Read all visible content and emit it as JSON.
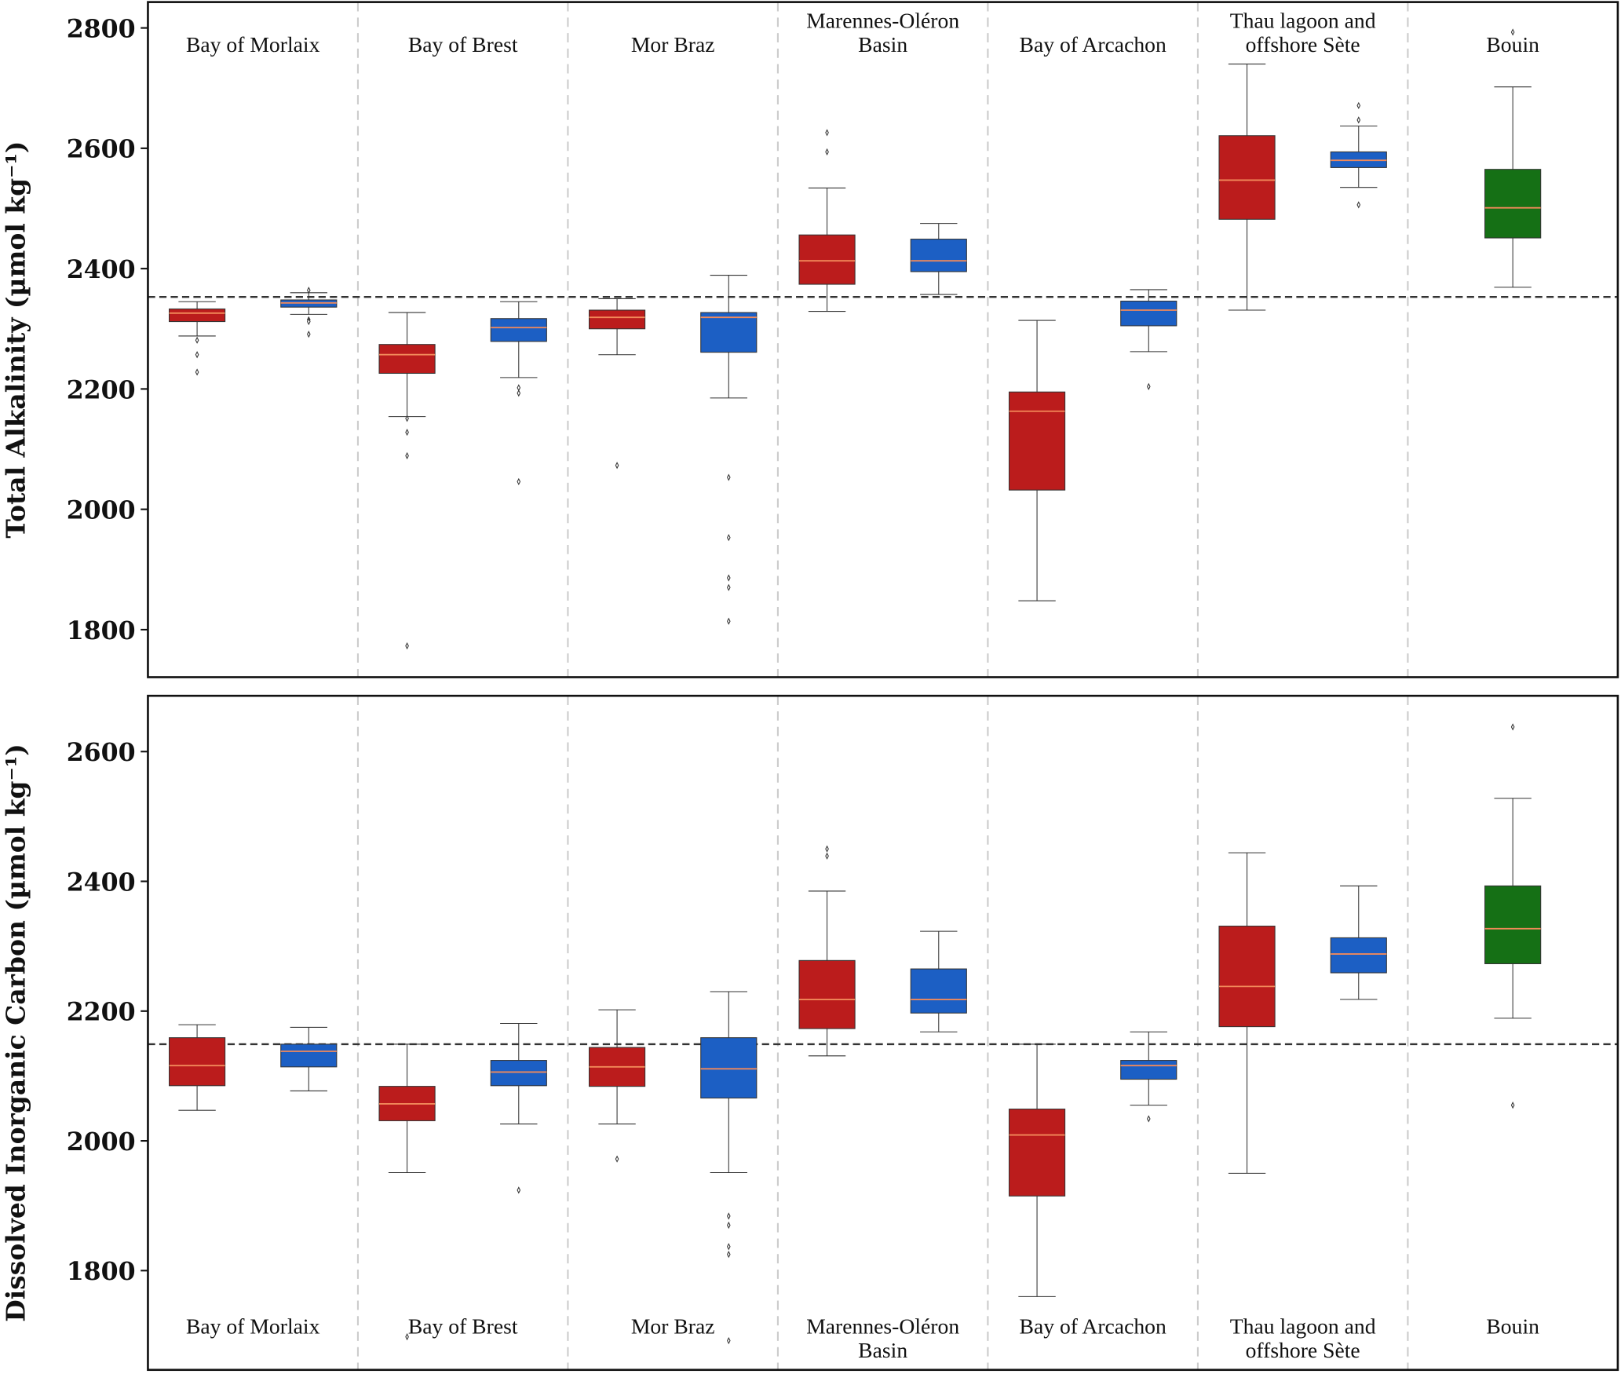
{
  "chart_data": [
    {
      "type": "box",
      "ylabel": "Total Alkalinity (µmol kg⁻¹)",
      "ylim": [
        1721,
        2843
      ],
      "yticks": [
        "1800",
        "2000",
        "2200",
        "2400",
        "2600",
        "2800"
      ],
      "reference_line": 2353,
      "category_label_position": "top",
      "grid": false,
      "groups": [
        {
          "name": [
            "Bay of Morlaix"
          ],
          "boxes": [
            {
              "color": "#BB1C1C",
              "whislo": 2288,
              "q1": 2312,
              "med": 2326,
              "q3": 2333,
              "whishi": 2345,
              "fliers": [
                2281,
                2257,
                2228
              ]
            },
            {
              "color": "#1C5FC4",
              "whislo": 2324,
              "q1": 2336,
              "med": 2343,
              "q3": 2348,
              "whishi": 2360,
              "fliers": [
                2364,
                2315,
                2312,
                2291
              ]
            }
          ]
        },
        {
          "name": [
            "Bay of Brest"
          ],
          "boxes": [
            {
              "color": "#BB1C1C",
              "whislo": 2154,
              "q1": 2226,
              "med": 2257,
              "q3": 2274,
              "whishi": 2327,
              "fliers": [
                2151,
                2128,
                2089,
                1773
              ]
            },
            {
              "color": "#1C5FC4",
              "whislo": 2219,
              "q1": 2279,
              "med": 2302,
              "q3": 2317,
              "whishi": 2345,
              "fliers": [
                2202,
                2193,
                2046
              ]
            }
          ]
        },
        {
          "name": [
            "Mor Braz"
          ],
          "boxes": [
            {
              "color": "#BB1C1C",
              "whislo": 2257,
              "q1": 2300,
              "med": 2319,
              "q3": 2331,
              "whishi": 2350,
              "fliers": [
                2073
              ]
            },
            {
              "color": "#1C5FC4",
              "whislo": 2185,
              "q1": 2261,
              "med": 2319,
              "q3": 2327,
              "whishi": 2389,
              "fliers": [
                2053,
                1953,
                1886,
                1870,
                1814
              ]
            }
          ]
        },
        {
          "name": [
            "Marennes-Oléron",
            "Basin"
          ],
          "boxes": [
            {
              "color": "#BB1C1C",
              "whislo": 2329,
              "q1": 2374,
              "med": 2413,
              "q3": 2456,
              "whishi": 2534,
              "fliers": [
                2626,
                2594
              ]
            },
            {
              "color": "#1C5FC4",
              "whislo": 2357,
              "q1": 2395,
              "med": 2413,
              "q3": 2449,
              "whishi": 2475,
              "fliers": []
            }
          ]
        },
        {
          "name": [
            "Bay of Arcachon"
          ],
          "boxes": [
            {
              "color": "#BB1C1C",
              "whislo": 1848,
              "q1": 2032,
              "med": 2163,
              "q3": 2195,
              "whishi": 2314,
              "fliers": []
            },
            {
              "color": "#1C5FC4",
              "whislo": 2262,
              "q1": 2305,
              "med": 2331,
              "q3": 2346,
              "whishi": 2365,
              "fliers": [
                2204
              ]
            }
          ]
        },
        {
          "name": [
            "Thau lagoon and",
            "offshore Sète"
          ],
          "boxes": [
            {
              "color": "#BB1C1C",
              "whislo": 2331,
              "q1": 2482,
              "med": 2547,
              "q3": 2621,
              "whishi": 2740,
              "fliers": []
            },
            {
              "color": "#1C5FC4",
              "whislo": 2535,
              "q1": 2568,
              "med": 2580,
              "q3": 2594,
              "whishi": 2637,
              "fliers": [
                2671,
                2647,
                2506
              ]
            }
          ]
        },
        {
          "name": [
            "Bouin"
          ],
          "boxes": [
            {
              "color": "#157015",
              "whislo": 2369,
              "q1": 2451,
              "med": 2501,
              "q3": 2565,
              "whishi": 2702,
              "fliers": [
                2793
              ]
            }
          ]
        }
      ]
    },
    {
      "type": "box",
      "ylabel": "Dissolved Inorganic Carbon (µmol kg⁻¹)",
      "ylim": [
        1647,
        2686
      ],
      "yticks": [
        "1800",
        "2000",
        "2200",
        "2400",
        "2600"
      ],
      "reference_line": 2149,
      "category_label_position": "bottom",
      "grid": false,
      "groups": [
        {
          "name": [
            "Bay of Morlaix"
          ],
          "boxes": [
            {
              "color": "#BB1C1C",
              "whislo": 2047,
              "q1": 2085,
              "med": 2116,
              "q3": 2159,
              "whishi": 2179,
              "fliers": []
            },
            {
              "color": "#1C5FC4",
              "whislo": 2077,
              "q1": 2114,
              "med": 2138,
              "q3": 2149,
              "whishi": 2175,
              "fliers": []
            }
          ]
        },
        {
          "name": [
            "Bay of Brest"
          ],
          "boxes": [
            {
              "color": "#BB1C1C",
              "whislo": 1951,
              "q1": 2031,
              "med": 2057,
              "q3": 2084,
              "whishi": 2149,
              "fliers": [
                1698
              ]
            },
            {
              "color": "#1C5FC4",
              "whislo": 2026,
              "q1": 2085,
              "med": 2106,
              "q3": 2124,
              "whishi": 2181,
              "fliers": [
                1924
              ]
            }
          ]
        },
        {
          "name": [
            "Mor Braz"
          ],
          "boxes": [
            {
              "color": "#BB1C1C",
              "whislo": 2026,
              "q1": 2084,
              "med": 2114,
              "q3": 2144,
              "whishi": 2202,
              "fliers": [
                1972
              ]
            },
            {
              "color": "#1C5FC4",
              "whislo": 1951,
              "q1": 2066,
              "med": 2111,
              "q3": 2159,
              "whishi": 2230,
              "fliers": [
                1884,
                1870,
                1837,
                1825,
                1692
              ]
            }
          ]
        },
        {
          "name": [
            "Marennes-Oléron",
            "Basin"
          ],
          "boxes": [
            {
              "color": "#BB1C1C",
              "whislo": 2131,
              "q1": 2173,
              "med": 2218,
              "q3": 2278,
              "whishi": 2385,
              "fliers": [
                2450,
                2439
              ]
            },
            {
              "color": "#1C5FC4",
              "whislo": 2168,
              "q1": 2197,
              "med": 2218,
              "q3": 2265,
              "whishi": 2323,
              "fliers": []
            }
          ]
        },
        {
          "name": [
            "Bay of Arcachon"
          ],
          "boxes": [
            {
              "color": "#BB1C1C",
              "whislo": 1760,
              "q1": 1915,
              "med": 2009,
              "q3": 2049,
              "whishi": 2149,
              "fliers": []
            },
            {
              "color": "#1C5FC4",
              "whislo": 2055,
              "q1": 2095,
              "med": 2116,
              "q3": 2124,
              "whishi": 2168,
              "fliers": [
                2034
              ]
            }
          ]
        },
        {
          "name": [
            "Thau lagoon and",
            "offshore Sète"
          ],
          "boxes": [
            {
              "color": "#BB1C1C",
              "whislo": 1950,
              "q1": 2176,
              "med": 2238,
              "q3": 2331,
              "whishi": 2444,
              "fliers": []
            },
            {
              "color": "#1C5FC4",
              "whislo": 2218,
              "q1": 2259,
              "med": 2288,
              "q3": 2313,
              "whishi": 2393,
              "fliers": []
            }
          ]
        },
        {
          "name": [
            "Bouin"
          ],
          "boxes": [
            {
              "color": "#157015",
              "whislo": 2189,
              "q1": 2273,
              "med": 2327,
              "q3": 2393,
              "whishi": 2528,
              "fliers": [
                2638,
                2055
              ]
            }
          ]
        }
      ]
    }
  ],
  "colors": {
    "median": "#F28A5A",
    "reference_line": "#333333",
    "separator": "#CCCCCC"
  }
}
